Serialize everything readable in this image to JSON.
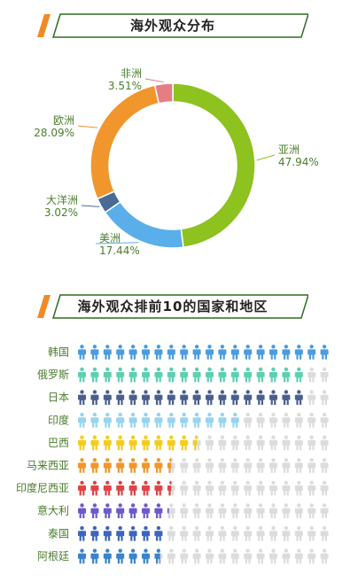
{
  "sections": [
    {
      "title": "海外观众分布"
    },
    {
      "title": "海外观众排前10的国家和地区"
    }
  ],
  "colors": {
    "banner_accent": "#f08a24",
    "banner_border": "#2f6b1f",
    "label_text": "#4a7d2c",
    "inactive_icon": "#dcdcdc"
  },
  "chart_data": [
    {
      "type": "pie",
      "variant": "donut",
      "title": "海外观众分布",
      "slices": [
        {
          "label": "亚洲",
          "value": 47.94,
          "value_label": "47.94%",
          "color": "#8dc21f"
        },
        {
          "label": "美洲",
          "value": 17.44,
          "value_label": "17.44%",
          "color": "#5aaeea"
        },
        {
          "label": "大洋洲",
          "value": 3.02,
          "value_label": "3.02%",
          "color": "#4a6b96"
        },
        {
          "label": "欧洲",
          "value": 28.09,
          "value_label": "28.09%",
          "color": "#f0962c"
        },
        {
          "label": "非洲",
          "value": 3.51,
          "value_label": "3.51%",
          "color": "#e57d85"
        }
      ]
    },
    {
      "type": "bar",
      "variant": "pictograph",
      "title": "海外观众排前10的国家和地区",
      "icon": "person-icon",
      "icons_total": 20,
      "categories": [
        "韩国",
        "俄罗斯",
        "日本",
        "印度",
        "巴西",
        "马来西亚",
        "印度尼西亚",
        "意大利",
        "泰国",
        "阿根廷"
      ],
      "values": [
        20,
        18,
        18,
        13,
        9.5,
        7.5,
        7.5,
        7.2,
        7,
        6.7
      ],
      "colors": [
        "#4b9ce0",
        "#5ecfb1",
        "#4a5f8c",
        "#97d4ef",
        "#f5cc1c",
        "#f0962c",
        "#e04446",
        "#6a5acd",
        "#3d65bc",
        "#3a84cc"
      ]
    }
  ]
}
